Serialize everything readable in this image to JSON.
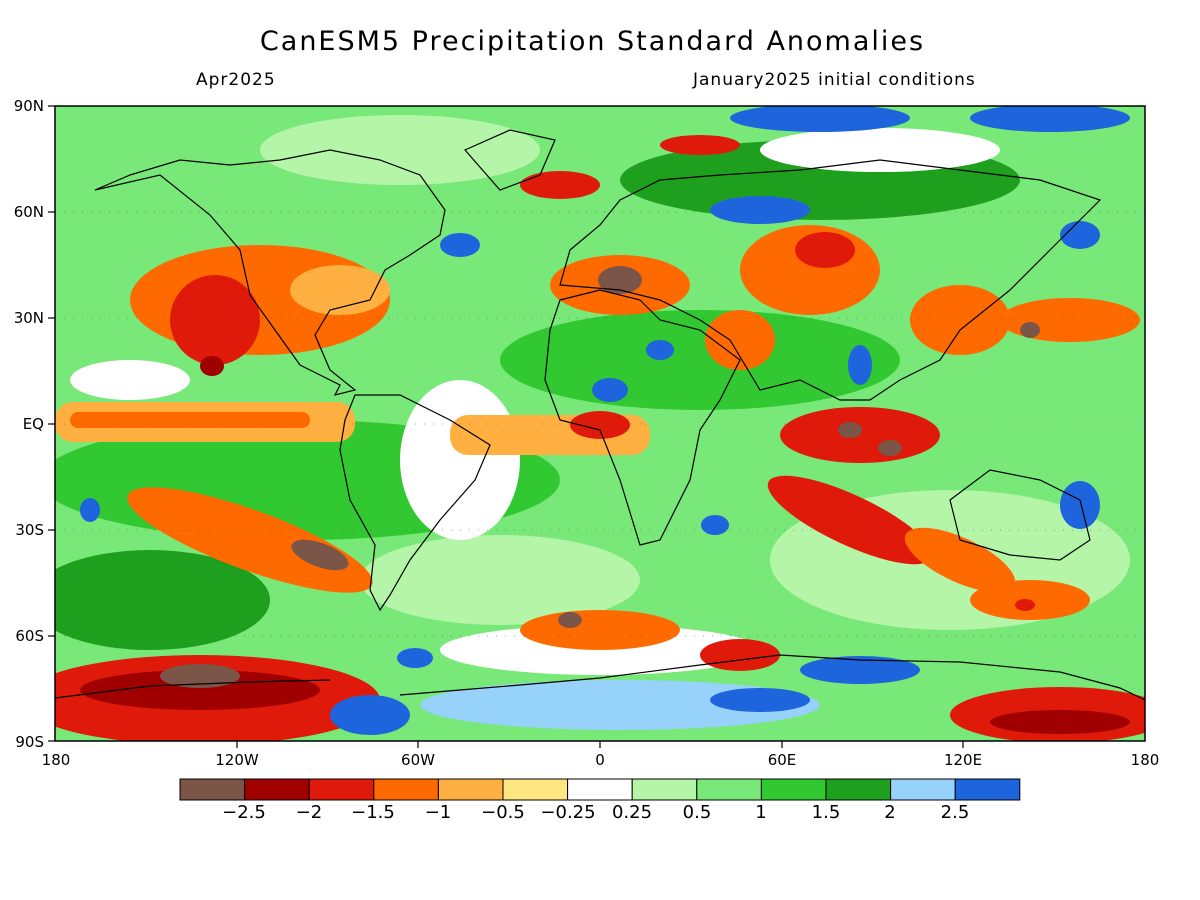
{
  "header": {
    "title": "CanESM5 Precipitation Standard Anomalies",
    "valid_month": "Apr2025",
    "initial_conditions": "January2025 initial conditions"
  },
  "axes": {
    "lat_labels": [
      "90N",
      "60N",
      "30N",
      "EQ",
      "30S",
      "60S",
      "90S"
    ],
    "lon_labels": [
      "180",
      "120W",
      "60W",
      "0",
      "60E",
      "120E",
      "180"
    ]
  },
  "colorbar": {
    "labels": [
      "−2.5",
      "−2",
      "−1.5",
      "−1",
      "−0.5",
      "−0.25",
      "0.25",
      "0.5",
      "1",
      "1.5",
      "2",
      "2.5"
    ],
    "colors": [
      "#7a5548",
      "#a00000",
      "#e01a0a",
      "#ff6a00",
      "#ffb040",
      "#ffe680",
      "#ffffff",
      "#b5f5a8",
      "#78e878",
      "#32c832",
      "#1ea01e",
      "#96d2fa",
      "#1e64dc"
    ]
  },
  "map_colors": {
    "ocean_base": "#78e878",
    "coastline": "#000000"
  }
}
